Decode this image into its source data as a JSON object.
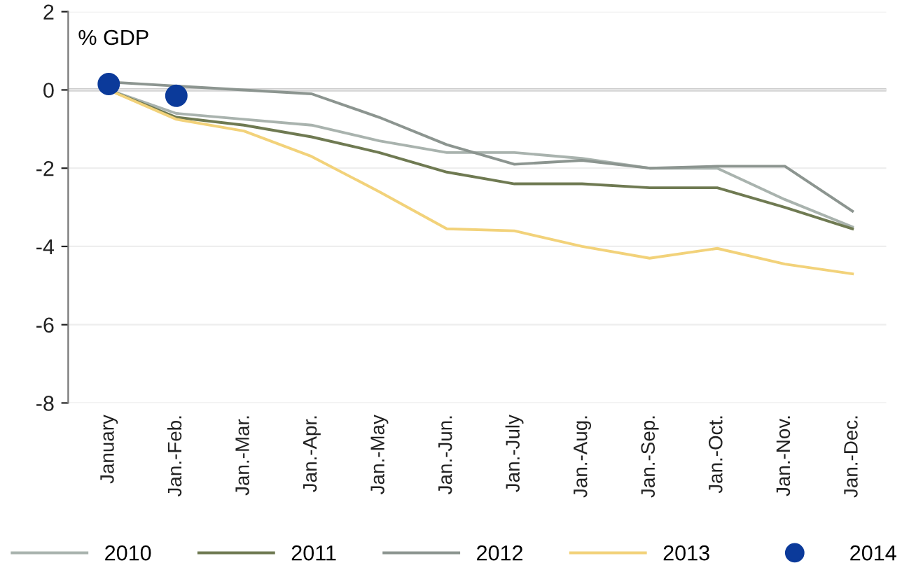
{
  "chart_data": {
    "type": "line",
    "ylabel": "% GDP",
    "categories": [
      "January",
      "Jan.-Feb.",
      "Jan.-Mar.",
      "Jan.-Apr.",
      "Jan.-May",
      "Jan.-Jun.",
      "Jan.-July",
      "Jan.-Aug.",
      "Jan.-Sep.",
      "Jan.-Oct.",
      "Jan.-Nov.",
      "Jan.-Dec."
    ],
    "series": [
      {
        "name": "2010",
        "color": "#a9b3ae",
        "values": [
          0,
          -0.6,
          -0.75,
          -0.9,
          -1.3,
          -1.6,
          -1.6,
          -1.75,
          -2.0,
          -2.0,
          -2.8,
          -3.5
        ]
      },
      {
        "name": "2011",
        "color": "#6f7a52",
        "values": [
          0,
          -0.7,
          -0.9,
          -1.2,
          -1.6,
          -2.1,
          -2.4,
          -2.4,
          -2.5,
          -2.5,
          -3.0,
          -3.55
        ]
      },
      {
        "name": "2012",
        "color": "#8c9590",
        "values": [
          0.2,
          0.1,
          0.0,
          -0.1,
          -0.7,
          -1.4,
          -1.9,
          -1.8,
          -2.0,
          -1.95,
          -1.95,
          -3.1
        ]
      },
      {
        "name": "2013",
        "color": "#f2d27a",
        "values": [
          0,
          -0.75,
          -1.05,
          -1.7,
          -2.6,
          -3.55,
          -3.6,
          -4.0,
          -4.3,
          -4.05,
          -4.45,
          -4.7
        ]
      },
      {
        "name": "2014",
        "type": "scatter",
        "marker": "circle",
        "color": "#0b3a9a",
        "values": [
          0.15,
          -0.15,
          null,
          null,
          null,
          null,
          null,
          null,
          null,
          null,
          null,
          null
        ]
      }
    ],
    "ylim": [
      -8,
      2
    ],
    "yticks": [
      -8,
      -6,
      -4,
      -2,
      0,
      2
    ],
    "grid": "y",
    "legend": "bottom",
    "marker": "none"
  }
}
